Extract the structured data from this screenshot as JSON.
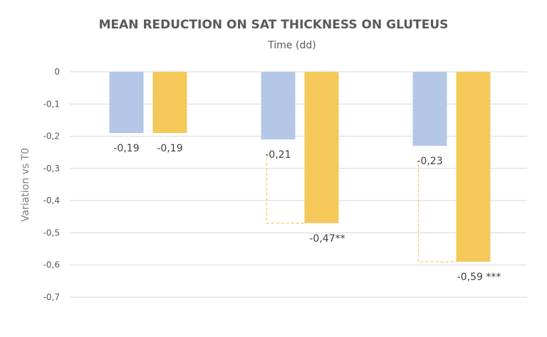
{
  "chart_data": {
    "type": "bar",
    "title": "MEAN REDUCTION ON SAT THICKNESS ON GLUTEUS",
    "subtitle": "Time (dd)",
    "xlabel": "",
    "ylabel": "Variation vs T0",
    "ylim": [
      -0.7,
      0
    ],
    "yticks": [
      0,
      -0.1,
      -0.2,
      -0.3,
      -0.4,
      -0.5,
      -0.6,
      -0.7
    ],
    "ytick_labels": [
      "0",
      "-0,1",
      "-0,2",
      "-0,3",
      "-0,4",
      "-0,5",
      "-0,6",
      "-0,7"
    ],
    "grid": true,
    "categories": [
      "",
      "",
      ""
    ],
    "series": [
      {
        "color": "#b4c7e7",
        "values": [
          -0.19,
          -0.21,
          -0.23
        ],
        "labels": [
          "-0,19",
          "-0,21",
          "-0,23"
        ]
      },
      {
        "color": "#f4c95a",
        "values": [
          -0.19,
          -0.47,
          -0.59
        ],
        "labels": [
          "-0,19",
          "-0,47**",
          "-0,59 ***"
        ]
      }
    ],
    "significance_brackets": [
      {
        "category_index": 1,
        "color": "#f4c95a"
      },
      {
        "category_index": 2,
        "color": "#f4c95a"
      }
    ]
  }
}
